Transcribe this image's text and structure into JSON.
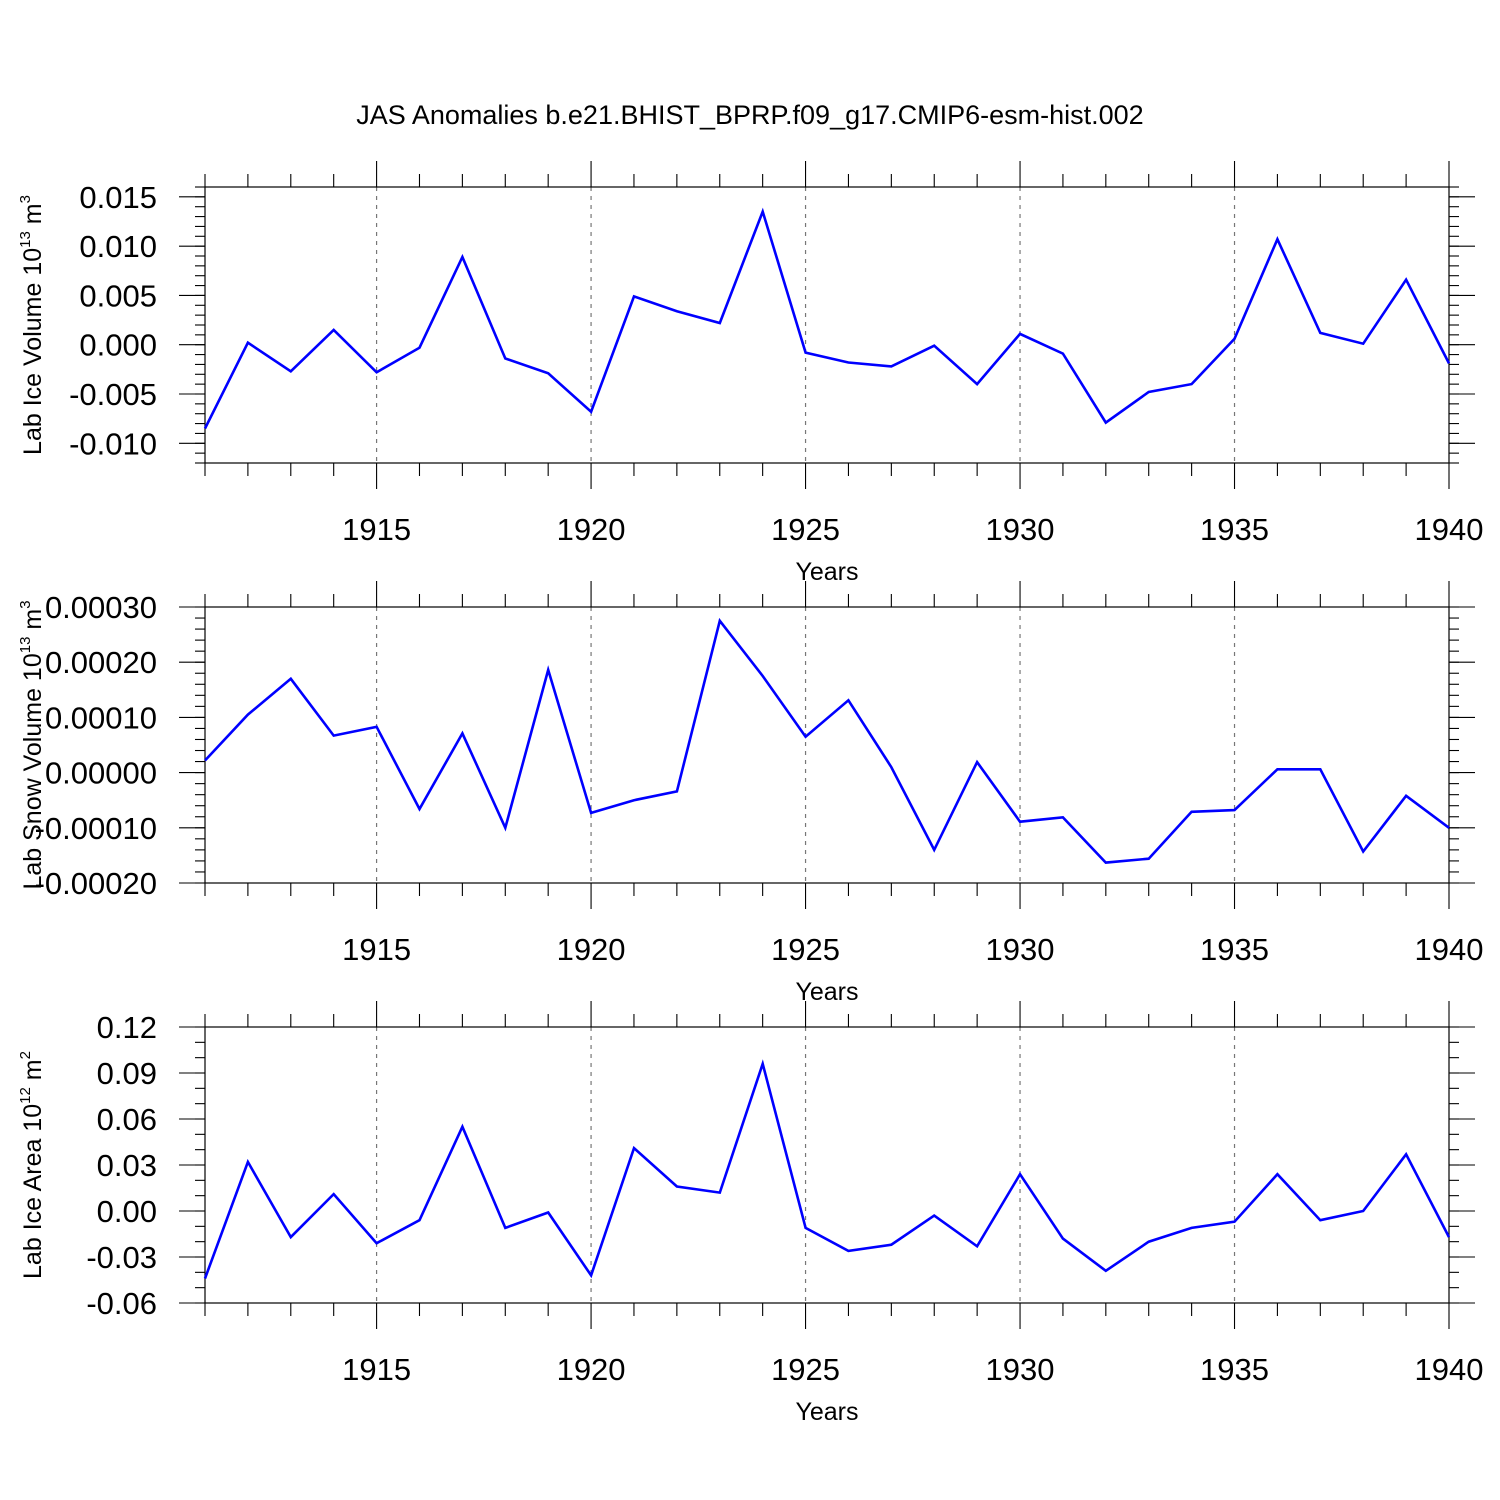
{
  "title": "JAS Anomalies b.e21.BHIST_BPRP.f09_g17.CMIP6-esm-hist.002",
  "colors": {
    "series": "#0000ff",
    "grid": "#777777",
    "axes": "#000000"
  },
  "chart_data": [
    {
      "type": "line",
      "ylabel": {
        "text": "Lab Ice Volume 10",
        "exponent": "13",
        "unit": " m",
        "unit_exponent": "3"
      },
      "xlabel": "Years",
      "xlim": [
        1911,
        1940
      ],
      "ylim": [
        -0.012,
        0.016
      ],
      "yticks": [
        -0.01,
        -0.005,
        0.0,
        0.005,
        0.01,
        0.015
      ],
      "ytick_labels": [
        "-0.010",
        "-0.005",
        "0.000",
        "0.005",
        "0.010",
        "0.015"
      ],
      "y_minor_step": 0.001,
      "xticks": [
        1915,
        1920,
        1925,
        1930,
        1935,
        1940
      ],
      "grid": "x-dashed",
      "x": [
        1911,
        1912,
        1913,
        1914,
        1915,
        1916,
        1917,
        1918,
        1919,
        1920,
        1921,
        1922,
        1923,
        1924,
        1925,
        1926,
        1927,
        1928,
        1929,
        1930,
        1931,
        1932,
        1933,
        1934,
        1935,
        1936,
        1937,
        1938,
        1939,
        1940
      ],
      "series": [
        {
          "values": [
            -0.0085,
            0.0002,
            -0.0027,
            0.0015,
            -0.0028,
            -0.0003,
            0.0089,
            -0.0014,
            -0.0029,
            -0.0068,
            0.0049,
            0.0034,
            0.0022,
            0.0135,
            -0.0008,
            -0.0018,
            -0.0022,
            -0.0001,
            -0.004,
            0.0011,
            -0.0009,
            -0.0079,
            -0.0048,
            -0.004,
            0.0006,
            0.0107,
            0.0012,
            0.0001,
            0.0066,
            -0.0019
          ]
        }
      ]
    },
    {
      "type": "line",
      "ylabel": {
        "text": "Lab Snow Volume 10",
        "exponent": "13",
        "unit": " m",
        "unit_exponent": "3"
      },
      "xlabel": "Years",
      "xlim": [
        1911,
        1940
      ],
      "ylim": [
        -0.0002,
        0.0003
      ],
      "yticks": [
        -0.0002,
        -0.0001,
        0.0,
        0.0001,
        0.0002,
        0.0003
      ],
      "ytick_labels": [
        "-0.00020",
        "-0.00010",
        "0.00000",
        "0.00010",
        "0.00020",
        "0.00030"
      ],
      "y_minor_step": 2e-05,
      "xticks": [
        1915,
        1920,
        1925,
        1930,
        1935,
        1940
      ],
      "grid": "x-dashed",
      "x": [
        1911,
        1912,
        1913,
        1914,
        1915,
        1916,
        1917,
        1918,
        1919,
        1920,
        1921,
        1922,
        1923,
        1924,
        1925,
        1926,
        1927,
        1928,
        1929,
        1930,
        1931,
        1932,
        1933,
        1934,
        1935,
        1936,
        1937,
        1938,
        1939,
        1940
      ],
      "series": [
        {
          "values": [
            2.2e-05,
            0.000105,
            0.00017,
            6.7e-05,
            8.3e-05,
            -6.6e-05,
            7.1e-05,
            -0.0001,
            0.000186,
            -7.3e-05,
            -5e-05,
            -3.4e-05,
            0.000275,
            0.000175,
            6.5e-05,
            0.000131,
            1e-05,
            -0.00014,
            1.9e-05,
            -8.9e-05,
            -8.1e-05,
            -0.000163,
            -0.000156,
            -7.1e-05,
            -6.8e-05,
            6e-06,
            6e-06,
            -0.000143,
            -4.2e-05,
            -0.0001
          ]
        }
      ]
    },
    {
      "type": "line",
      "ylabel": {
        "text": "Lab Ice Area 10",
        "exponent": "12",
        "unit": " m",
        "unit_exponent": "2"
      },
      "xlabel": "Years",
      "xlim": [
        1911,
        1940
      ],
      "ylim": [
        -0.06,
        0.12
      ],
      "yticks": [
        -0.06,
        -0.03,
        0.0,
        0.03,
        0.06,
        0.09,
        0.12
      ],
      "ytick_labels": [
        "-0.06",
        "-0.03",
        "0.00",
        "0.03",
        "0.06",
        "0.09",
        "0.12"
      ],
      "y_minor_step": 0.01,
      "xticks": [
        1915,
        1920,
        1925,
        1930,
        1935,
        1940
      ],
      "grid": "x-dashed",
      "x": [
        1911,
        1912,
        1913,
        1914,
        1915,
        1916,
        1917,
        1918,
        1919,
        1920,
        1921,
        1922,
        1923,
        1924,
        1925,
        1926,
        1927,
        1928,
        1929,
        1930,
        1931,
        1932,
        1933,
        1934,
        1935,
        1936,
        1937,
        1938,
        1939,
        1940
      ],
      "series": [
        {
          "values": [
            -0.044,
            0.032,
            -0.017,
            0.011,
            -0.021,
            -0.006,
            0.055,
            -0.011,
            -0.001,
            -0.042,
            0.041,
            0.016,
            0.012,
            0.096,
            -0.011,
            -0.026,
            -0.022,
            -0.003,
            -0.023,
            0.024,
            -0.018,
            -0.039,
            -0.02,
            -0.011,
            -0.007,
            0.024,
            -0.006,
            0.0,
            0.037,
            -0.017
          ]
        }
      ]
    }
  ]
}
